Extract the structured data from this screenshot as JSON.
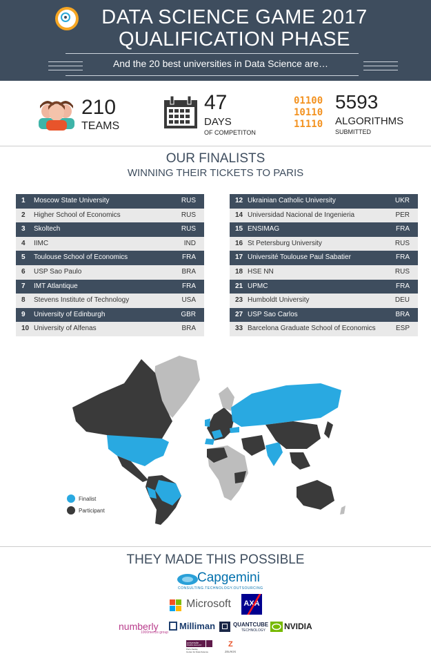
{
  "header": {
    "title_line1": "DATA SCIENCE GAME 2017",
    "title_line2": "QUALIFICATION PHASE",
    "subtitle": "And the 20 best universities in Data Science are…"
  },
  "stats": {
    "teams": {
      "value": "210",
      "label": "TEAMS",
      "icon": "team-icon"
    },
    "days": {
      "value": "47",
      "label": "DAYS",
      "sublabel": "OF COMPETITON",
      "icon": "calendar-icon"
    },
    "algorithms": {
      "value": "5593",
      "label": "ALGORITHMS",
      "sublabel": "SUBMITTED",
      "icon": "binary-icon",
      "binary": [
        "01100",
        "10110",
        "11110"
      ]
    }
  },
  "finalists": {
    "title": "OUR FINALISTS",
    "subtitle": "WINNING THEIR TICKETS TO PARIS",
    "left": [
      {
        "rank": "1",
        "name": "Moscow State University",
        "country": "RUS"
      },
      {
        "rank": "2",
        "name": "Higher School of Economics",
        "country": "RUS"
      },
      {
        "rank": "3",
        "name": "Skoltech",
        "country": "RUS"
      },
      {
        "rank": "4",
        "name": "IIMC",
        "country": "IND"
      },
      {
        "rank": "5",
        "name": "Toulouse School of Economics",
        "country": "FRA"
      },
      {
        "rank": "6",
        "name": "USP Sao Paulo",
        "country": "BRA"
      },
      {
        "rank": "7",
        "name": "IMT Atlantique",
        "country": "FRA"
      },
      {
        "rank": "8",
        "name": "Stevens Institute of Technology",
        "country": "USA"
      },
      {
        "rank": "9",
        "name": "University of Edinburgh",
        "country": "GBR"
      },
      {
        "rank": "10",
        "name": "University of Alfenas",
        "country": "BRA"
      }
    ],
    "right": [
      {
        "rank": "12",
        "name": "Ukrainian Catholic University",
        "country": "UKR"
      },
      {
        "rank": "14",
        "name": "Universidad Nacional de Ingenieria",
        "country": "PER"
      },
      {
        "rank": "15",
        "name": "ENSIMAG",
        "country": "FRA"
      },
      {
        "rank": "16",
        "name": "St Petersburg University",
        "country": "RUS"
      },
      {
        "rank": "17",
        "name": "Université Toulouse Paul Sabatier",
        "country": "FRA"
      },
      {
        "rank": "18",
        "name": "HSE NN",
        "country": "RUS"
      },
      {
        "rank": "21",
        "name": "UPMC",
        "country": "FRA"
      },
      {
        "rank": "23",
        "name": "Humboldt University",
        "country": "DEU"
      },
      {
        "rank": "27",
        "name": "USP Sao Carlos",
        "country": "BRA"
      },
      {
        "rank": "33",
        "name": "Barcelona Graduate School of Economics",
        "country": "ESP"
      }
    ]
  },
  "map": {
    "legend": [
      {
        "label": "Finalist",
        "color": "#29a9e1"
      },
      {
        "label": "Participant",
        "color": "#3a3a3a"
      }
    ],
    "other_color": "#bdbdbd"
  },
  "sponsors": {
    "title": "THEY MADE THIS POSSIBLE",
    "capgemini": {
      "name": "Capgemini",
      "tagline": "CONSULTING.TECHNOLOGY.OUTSOURCING"
    },
    "microsoft": "Microsoft",
    "axa": "AXA",
    "numberly": {
      "name": "numberly",
      "tagline": "1000mercis group"
    },
    "milliman": "Milliman",
    "quantcube": {
      "name": "QUANTCUBE",
      "tagline": "TECHNOLOGY"
    },
    "nvidia": "NVIDIA",
    "paris_saclay": {
      "line1": "universite",
      "line2": "PARIS-SACLAY",
      "line3": "Paris-Saclay",
      "line4": "Center for Data Science"
    },
    "zelros": "ZELROS"
  },
  "colors": {
    "header_bg": "#3e4d5e",
    "accent_orange": "#f39220",
    "finalist_blue": "#29a9e1"
  }
}
